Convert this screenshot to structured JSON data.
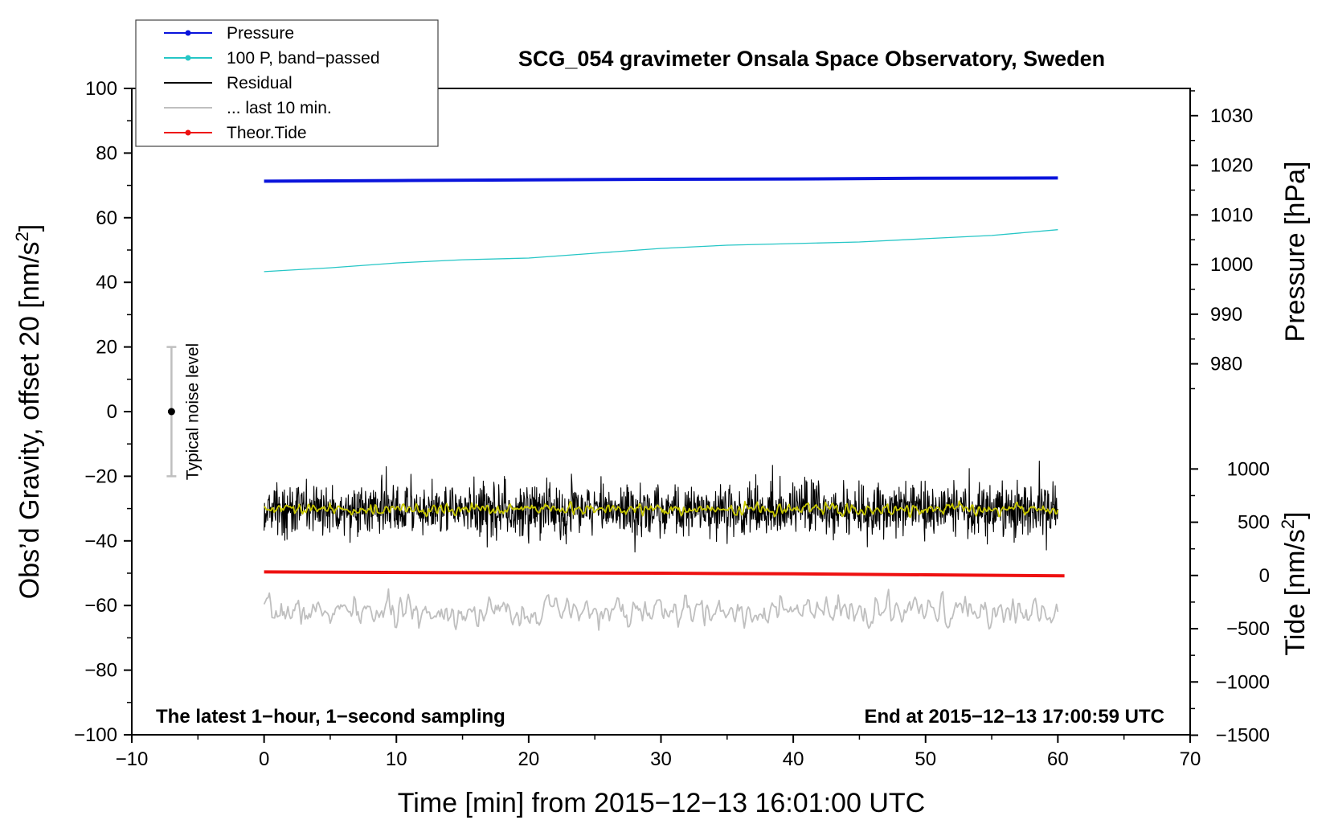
{
  "chart_data": {
    "type": "line",
    "title": "SCG_054 gravimeter Onsala Space Observatory, Sweden",
    "xlabel": "Time [min] from 2015−12−13 16:01:00 UTC",
    "ylabel_left": "Obs’d Gravity, offset 20 [nm/s",
    "ylabel_left_sup": "2",
    "ylabel_left_end": "]",
    "ylabel_right_pressure": "Pressure [hPa]",
    "ylabel_right_tide": "Tide [nm/s",
    "ylabel_right_tide_sup": "2",
    "ylabel_right_tide_end": "]",
    "xlim": [
      -10,
      70
    ],
    "ylim": [
      -100,
      100
    ],
    "x_ticks": [
      -10,
      0,
      10,
      20,
      30,
      40,
      50,
      60,
      70
    ],
    "x_tick_labels": [
      "−10",
      "0",
      "10",
      "20",
      "30",
      "40",
      "50",
      "60",
      "70"
    ],
    "y_ticks": [
      -100,
      -80,
      -60,
      -40,
      -20,
      0,
      20,
      40,
      60,
      80,
      100
    ],
    "y_tick_labels": [
      "−100",
      "−80",
      "−60",
      "−40",
      "−20",
      "0",
      "20",
      "40",
      "60",
      "80",
      "100"
    ],
    "pressure_axis": {
      "ticks": [
        980,
        990,
        1000,
        1010,
        1020,
        1030
      ],
      "tick_labels": [
        "980",
        "990",
        "1000",
        "1010",
        "1020",
        "1030"
      ],
      "gravity_at_1000": 45.5,
      "gravity_per_hpa": 1.536
    },
    "tide_axis": {
      "ticks": [
        -1500,
        -1000,
        -500,
        0,
        500,
        1000
      ],
      "tick_labels": [
        "−1500",
        "−1000",
        "−500",
        "0",
        "500",
        "1000"
      ],
      "gravity_at_0": -50.7,
      "gravity_per_unit": 0.03295
    },
    "series": [
      {
        "name": "Pressure",
        "color": "#0a14dc",
        "x": [
          0,
          5,
          10,
          20,
          30,
          40,
          49.5,
          60
        ],
        "y": [
          71.3,
          71.4,
          71.5,
          71.7,
          71.9,
          72.0,
          72.2,
          72.3
        ]
      },
      {
        "name": "100 P, band−passed",
        "color": "#26c6c6",
        "x": [
          0,
          5,
          10,
          15,
          20,
          25,
          30,
          35,
          40,
          45,
          50,
          55,
          60
        ],
        "y": [
          43.3,
          44.5,
          46.0,
          47.0,
          47.5,
          49.0,
          50.5,
          51.5,
          52.0,
          52.5,
          53.5,
          54.5,
          56.3
        ]
      },
      {
        "name": "Residual",
        "color": "#000000",
        "center": -30.3,
        "noise_amplitude": 4,
        "x_range": [
          0,
          60
        ]
      },
      {
        "name": "... last 10 min.",
        "color": "#bfbfbf",
        "center": -62,
        "noise_amplitude": 3,
        "x_range": [
          0,
          60
        ]
      },
      {
        "name": "Theor.Tide",
        "color": "#ee1111",
        "x": [
          0,
          13,
          30,
          40,
          50,
          60.5
        ],
        "y": [
          -49.6,
          -49.8,
          -50.0,
          -50.2,
          -50.5,
          -50.8
        ]
      },
      {
        "name": "yellow smoothed",
        "color": "#c8c800",
        "center": -30.3,
        "noise_amplitude": 1.2,
        "x_range": [
          0,
          60
        ]
      }
    ],
    "legend": [
      {
        "label": "Pressure",
        "color": "#0a14dc",
        "marker": true
      },
      {
        "label": "100 P, band−passed",
        "color": "#26c6c6",
        "marker": true
      },
      {
        "label": "Residual",
        "color": "#000000",
        "marker": false
      },
      {
        "label": "... last 10 min.",
        "color": "#bfbfbf",
        "marker": false
      },
      {
        "label": "Theor.Tide",
        "color": "#ee1111",
        "marker": true
      }
    ],
    "annotations": {
      "left": "The latest 1−hour, 1−second sampling",
      "right": "End at 2015−12−13 17:00:59 UTC",
      "noise": "Typical noise level"
    },
    "noise_bar": {
      "x": -7,
      "y_low": -20,
      "y_high": 20,
      "y_center": 0
    }
  }
}
